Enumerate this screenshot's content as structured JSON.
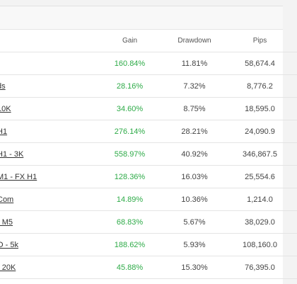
{
  "table": {
    "headers": {
      "gain": "Gain",
      "drawdown": "Drawdown",
      "pips": "Pips"
    },
    "rows": [
      {
        "name": "",
        "gain": "160.84%",
        "drawdown": "11.81%",
        "pips": "58,674.4"
      },
      {
        "name": "ds",
        "gain": "28.16%",
        "drawdown": "7.32%",
        "pips": "8,776.2"
      },
      {
        "name": "10K",
        "gain": "34.60%",
        "drawdown": "8.75%",
        "pips": "18,595.0"
      },
      {
        "name": "H1",
        "gain": "276.14%",
        "drawdown": "28.21%",
        "pips": "24,090.9"
      },
      {
        "name": "H1 - 3K",
        "gain": "558.97%",
        "drawdown": "40.92%",
        "pips": "346,867.5"
      },
      {
        "name": "M1 - FX H1",
        "gain": "128.36%",
        "drawdown": "16.03%",
        "pips": "25,554.6"
      },
      {
        "name": "Com",
        "gain": "14.89%",
        "drawdown": "10.36%",
        "pips": "1,214.0"
      },
      {
        "name": "- M5",
        "gain": "68.83%",
        "drawdown": "5.67%",
        "pips": "38,029.0"
      },
      {
        "name": "O - 5k",
        "gain": "188.62%",
        "drawdown": "5.93%",
        "pips": "108,160.0"
      },
      {
        "name": "- 20K",
        "gain": "45.88%",
        "drawdown": "15.30%",
        "pips": "76,395.0"
      }
    ]
  },
  "colors": {
    "gain_positive": "#2eab48"
  }
}
